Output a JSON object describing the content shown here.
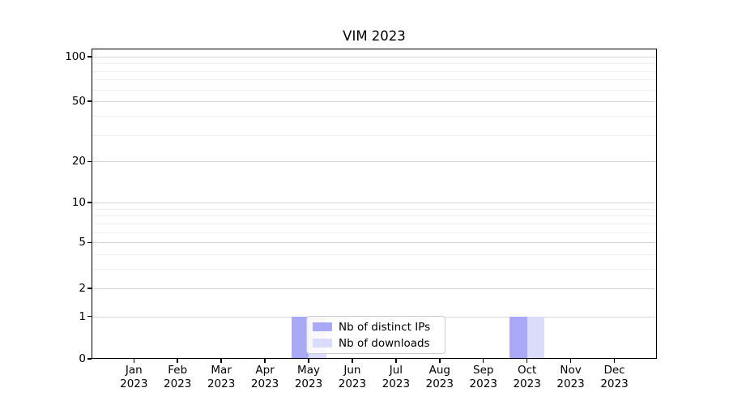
{
  "chart_data": {
    "type": "bar",
    "title": "VIM 2023",
    "categories": [
      "Jan",
      "Feb",
      "Mar",
      "Apr",
      "May",
      "Jun",
      "Jul",
      "Aug",
      "Sep",
      "Oct",
      "Nov",
      "Dec"
    ],
    "year_label": "2023",
    "series": [
      {
        "name": "Nb of distinct IPs",
        "color": "#a9a9f5",
        "values": [
          0,
          0,
          0,
          0,
          1,
          0,
          0,
          0,
          0,
          1,
          0,
          0
        ]
      },
      {
        "name": "Nb of downloads",
        "color": "#dbdbfa",
        "values": [
          0,
          0,
          0,
          0,
          1,
          0,
          0,
          0,
          0,
          1,
          0,
          0
        ]
      }
    ],
    "y_ticks": [
      0,
      1,
      2,
      5,
      10,
      20,
      50,
      100
    ],
    "y_scale": "log(1+x)",
    "ylim": [
      0,
      113
    ],
    "xlabel": "",
    "ylabel": "",
    "grid": "horizontal",
    "legend_position": "lower-center-inside"
  },
  "colors": {
    "background": "#ffffff",
    "spine": "#000000",
    "grid_major": "#d6d6d6",
    "grid_minor": "#f0f0f0",
    "legend_border": "#cccccc"
  }
}
